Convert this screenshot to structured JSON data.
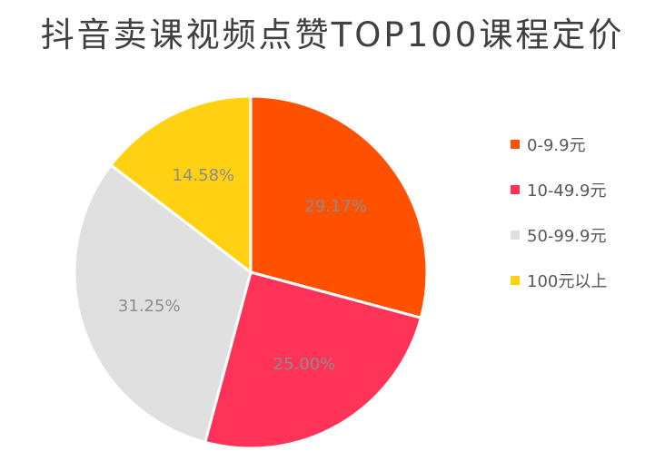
{
  "chart_data": {
    "type": "pie",
    "title": "抖音卖课视频点赞TOP100课程定价",
    "categories": [
      "0-9.9元",
      "10-49.9元",
      "50-99.9元",
      "100元以上"
    ],
    "values": [
      29.17,
      25.0,
      31.25,
      14.58
    ],
    "value_labels": [
      "29.17%",
      "25.00%",
      "31.25%",
      "14.58%"
    ],
    "colors": [
      "#FF5100",
      "#FF3358",
      "#E0E0E0",
      "#FFD111"
    ],
    "label_color": "#8C8C8C",
    "start_angle_deg": 0,
    "direction": "clockwise",
    "legend_position": "right"
  }
}
